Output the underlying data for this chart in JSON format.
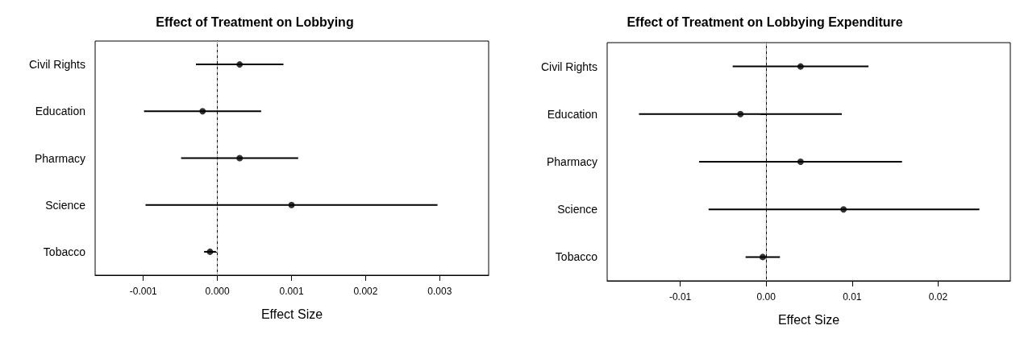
{
  "chart_data": [
    {
      "type": "scatter",
      "orientation": "horizontal",
      "title": "Effect of Treatment on Lobbying",
      "xlabel": "Effect Size",
      "categories": [
        "Civil Rights",
        "Education",
        "Pharmacy",
        "Science",
        "Tobacco"
      ],
      "values": [
        0.0003,
        -0.0002,
        0.0003,
        0.001,
        -0.0001
      ],
      "errors": [
        [
          -0.00029,
          0.00089
        ],
        [
          -0.00099,
          0.00059
        ],
        [
          -0.00049,
          0.00109
        ],
        [
          -0.00097,
          0.00297
        ],
        [
          -0.00018,
          -2e-05
        ]
      ],
      "color": "#000000",
      "marker": "circle",
      "grid": false,
      "xlim": [
        -0.00165,
        0.00366
      ],
      "xticks": [
        {
          "value": -0.001,
          "label": "-0.001"
        },
        {
          "value": 0,
          "label": "0.000"
        },
        {
          "value": 0.001,
          "label": "0.001"
        },
        {
          "value": 0.002,
          "label": "0.002"
        },
        {
          "value": 0.003,
          "label": "0.003"
        }
      ],
      "ref_lines": [
        {
          "axis": "x",
          "value": 0,
          "color": "#c8c8c8",
          "line_style": "dashed"
        }
      ]
    },
    {
      "type": "scatter",
      "orientation": "horizontal",
      "title": "Effect of Treatment on Lobbying Expenditure",
      "xlabel": "Effect Size",
      "categories": [
        "Civil Rights",
        "Education",
        "Pharmacy",
        "Science",
        "Tobacco"
      ],
      "values": [
        0.004,
        -0.003,
        0.004,
        0.009,
        -0.0004
      ],
      "errors": [
        [
          -0.0039,
          0.0119
        ],
        [
          -0.0148,
          0.0088
        ],
        [
          -0.0078,
          0.0158
        ],
        [
          -0.0067,
          0.0248
        ],
        [
          -0.0024,
          0.0016
        ]
      ],
      "color": "#000000",
      "marker": "circle",
      "grid": false,
      "xlim": [
        -0.0185,
        0.0284
      ],
      "xticks": [
        {
          "value": -0.01,
          "label": "-0.01"
        },
        {
          "value": 0,
          "label": "0.00"
        },
        {
          "value": 0.01,
          "label": "0.01"
        },
        {
          "value": 0.02,
          "label": "0.02"
        }
      ],
      "ref_lines": [
        {
          "axis": "x",
          "value": 0,
          "color": "#c8c8c8",
          "line_style": "dashed"
        }
      ]
    }
  ]
}
